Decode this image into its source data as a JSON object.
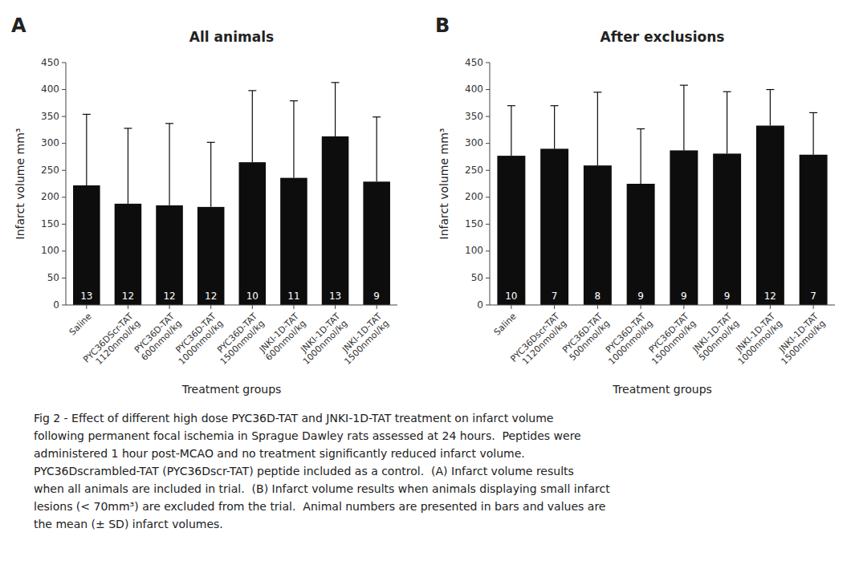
{
  "chart_data": [
    {
      "type": "bar",
      "panel_label": "A",
      "title": "All animals",
      "categories": [
        "Saline",
        "PYC36DScr-TAT\n1120nmol/kg",
        "PYC36D-TAT\n600nmol/kg",
        "PYC36D-TAT\n1000nmol/kg",
        "PYC36D-TAT\n1500nmol/kg",
        "JNKI-1D-TAT\n600nmol/kg",
        "JNKI-1D-TAT\n1000nmol/kg",
        "JNKI-1D-TAT\n1500nmol/kg"
      ],
      "values": [
        222,
        188,
        185,
        182,
        265,
        236,
        313,
        229
      ],
      "error_bars_top": [
        354,
        328,
        337,
        302,
        398,
        379,
        413,
        349
      ],
      "n_labels": [
        "13",
        "12",
        "12",
        "12",
        "10",
        "11",
        "13",
        "9"
      ],
      "xlabel": "Treatment groups",
      "ylabel": "Infarct volume mm³",
      "ylim": [
        0,
        450
      ],
      "yticks": [
        0,
        50,
        100,
        150,
        200,
        250,
        300,
        350,
        400,
        450
      ],
      "color": "#0d0d0d",
      "grid": false
    },
    {
      "type": "bar",
      "panel_label": "B",
      "title": "After exclusions",
      "categories": [
        "Saline",
        "PYC36Dscr-TAT\n1120nmol/kg",
        "PYC36D-TAT\n500nmol/kg",
        "PYC36D-TAT\n1000nmol/kg",
        "PYC36D-TAT\n1500nmol/kg",
        "JNKI-1D-TAT\n500nmol/kg",
        "JNKI-1D-TAT\n1000nmol/kg",
        "JNKI-1D-TAT\n1500nmol/kg"
      ],
      "values": [
        277,
        290,
        259,
        225,
        287,
        281,
        333,
        279
      ],
      "error_bars_top": [
        370,
        370,
        395,
        327,
        408,
        396,
        400,
        357
      ],
      "n_labels": [
        "10",
        "7",
        "8",
        "9",
        "9",
        "9",
        "12",
        "7"
      ],
      "xlabel": "Treatment groups",
      "ylabel": "Infarct volume mm³",
      "ylim": [
        0,
        450
      ],
      "yticks": [
        0,
        50,
        100,
        150,
        200,
        250,
        300,
        350,
        400,
        450
      ],
      "color": "#0d0d0d",
      "grid": false
    }
  ],
  "caption": [
    "Fig 2 - Effect of different high dose PYC36D-TAT and JNKI-1D-TAT treatment on infarct volume",
    "following permanent focal ischemia in Sprague Dawley rats assessed at 24 hours.  Peptides were",
    "administered 1 hour post-MCAO and no treatment significantly reduced infarct volume.",
    "PYC36Dscrambled-TAT (PYC36Dscr-TAT) peptide included as a control.  (A) Infarct volume results",
    "when all animals are included in trial.  (B) Infarct volume results when animals displaying small infarct",
    "lesions (< 70mm³) are excluded from the trial.  Animal numbers are presented in bars and values are",
    "the mean (± SD) infarct volumes."
  ]
}
